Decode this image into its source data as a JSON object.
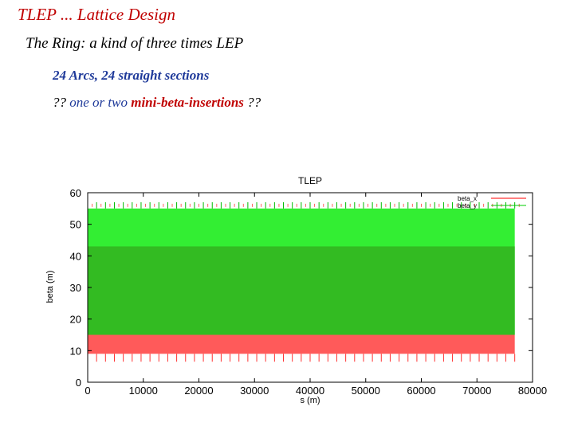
{
  "slide": {
    "title": "TLEP   ... Lattice Design",
    "subtitle": "The Ring: a kind of three times LEP",
    "line1": "24 Arcs, 24 straight sections",
    "line2": {
      "p1": "?? ",
      "p2": "one or two ",
      "p3": "",
      "p4": "mini-beta-insertions",
      "p5": " ??"
    }
  },
  "chart_data": {
    "type": "line",
    "title": "TLEP",
    "xlabel": "s (m)",
    "ylabel": "beta (m)",
    "xlim": [
      0,
      80000
    ],
    "ylim": [
      0,
      60
    ],
    "xticks": [
      0,
      10000,
      20000,
      30000,
      40000,
      50000,
      60000,
      70000,
      80000
    ],
    "yticks": [
      0,
      10,
      20,
      30,
      40,
      50,
      60
    ],
    "legend_position": "top-right",
    "series": [
      {
        "name": "beta_x",
        "color": "#ff0000",
        "band": [
          9,
          15
        ],
        "periodic_peak": 55,
        "data_extent": [
          0,
          76800
        ]
      },
      {
        "name": "beta_y",
        "color": "#00cc00",
        "band": [
          15,
          55
        ],
        "periodic_peak": 55,
        "data_extent": [
          0,
          76800
        ]
      }
    ],
    "colors": {
      "beta_x_band": "#ff5a5a",
      "beta_y_band": "#33ee33",
      "beta_y_core": "#33bb22"
    }
  }
}
